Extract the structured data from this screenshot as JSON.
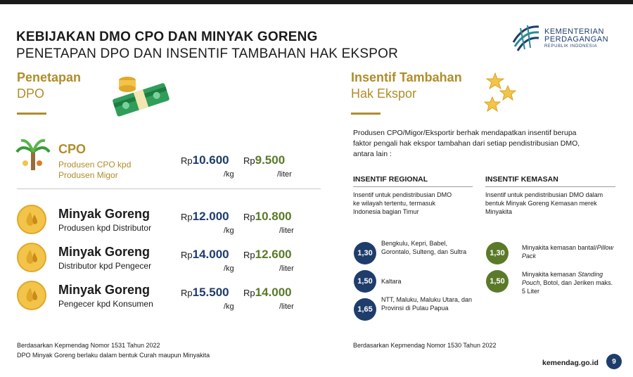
{
  "header": {
    "title_line1": "KEBIJAKAN DMO CPO DAN MINYAK GORENG",
    "title_line2": "PENETAPAN DPO DAN INSENTIF TAMBAHAN HAK EKSPOR"
  },
  "logo": {
    "line1": "KEMENTERIAN",
    "line2": "PERDAGANGAN",
    "line3": "REPUBLIK INDONESIA",
    "icon": "ministry-logo-icon"
  },
  "left": {
    "heading_bold": "Penetapan",
    "heading_light": "DPO",
    "heading_icon": "money-stack-icon",
    "rows": [
      {
        "title": "CPO",
        "sub1": "Produsen CPO kpd",
        "sub2": "Produsen Migor",
        "rp1": "Rp",
        "price1": "10.600",
        "unit1": "/kg",
        "rp2": "Rp",
        "price2": "9.500",
        "unit2": "/liter",
        "icon": "palm-tree-icon"
      },
      {
        "title": "Minyak Goreng",
        "sub1": "Produsen kpd Distributor",
        "rp1": "Rp",
        "price1": "12.000",
        "unit1": "/kg",
        "rp2": "Rp",
        "price2": "10.800",
        "unit2": "/liter",
        "icon": "oil-drop-icon"
      },
      {
        "title": "Minyak Goreng",
        "sub1": "Distributor kpd Pengecer",
        "rp1": "Rp",
        "price1": "14.000",
        "unit1": "/kg",
        "rp2": "Rp",
        "price2": "12.600",
        "unit2": "/liter",
        "icon": "oil-drop-icon"
      },
      {
        "title": "Minyak Goreng",
        "sub1": "Pengecer kpd Konsumen",
        "rp1": "Rp",
        "price1": "15.500",
        "unit1": "/kg",
        "rp2": "Rp",
        "price2": "14.000",
        "unit2": "/liter",
        "icon": "oil-drop-icon"
      }
    ],
    "footnote1": "Berdasarkan Kepmendag Nomor 1531 Tahun 2022",
    "footnote2": "DPO Minyak Goreng berlaku dalam bentuk Curah maupun Minyakita"
  },
  "right": {
    "heading_bold": "Insentif Tambahan",
    "heading_light": "Hak Ekspor",
    "heading_icon": "stars-icon",
    "intro": "Produsen CPO/Migor/Eksportir berhak mendapatkan insentif berupa faktor pengali hak ekspor tambahan dari setiap pendistribusian DMO, antara lain :",
    "regional": {
      "header": "INSENTIF REGIONAL",
      "desc": "Insentif untuk pendistribusian DMO ke wilayah tertentu, termasuk Indonesia bagian Timur",
      "items": [
        {
          "value": "1,30",
          "text": "Bengkulu, Kepri, Babel, Gorontalo, Sulteng, dan Sultra"
        },
        {
          "value": "1,50",
          "text": "Kaltara"
        },
        {
          "value": "1,65",
          "text": "NTT, Maluku, Maluku Utara, dan Provinsi di Pulau Papua"
        }
      ]
    },
    "kemasan": {
      "header": "INSENTIF KEMASAN",
      "desc": "Insentif untuk pendistribusian DMO dalam bentuk Minyak Goreng Kemasan merek Minyakita",
      "items": [
        {
          "value": "1,30",
          "text_prefix": "Minyakita kemasan bantal/",
          "text_italic": "Pillow Pack"
        },
        {
          "value": "1,50",
          "text_prefix": "Minyakita kemasan ",
          "text_italic": "Standing Pouch",
          "text_suffix": ", Botol, dan Jeriken maks. 5 Liter"
        }
      ]
    },
    "footnote": "Berdasarkan Kepmendag Nomor 1530 Tahun 2022"
  },
  "footer": {
    "site": "kemendag.go.id",
    "page": "9"
  },
  "colors": {
    "gold": "#b08d2a",
    "navy": "#1f3d6b",
    "green": "#5a7a2a"
  }
}
